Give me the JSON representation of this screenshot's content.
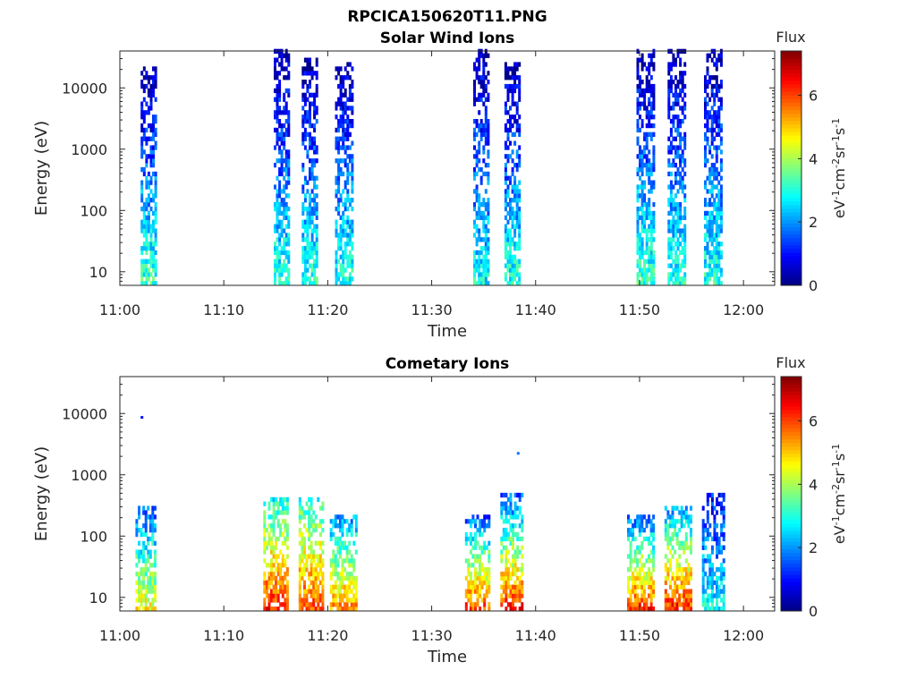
{
  "figure_title": "RPCICA150620T11.PNG",
  "colormap": [
    "#00007f",
    "#0000ff",
    "#007fff",
    "#00ffff",
    "#7fff7f",
    "#ffff00",
    "#ff7f00",
    "#ff0000",
    "#7f0000"
  ],
  "chart_data": [
    {
      "type": "heatmap",
      "title": "Solar Wind Ions",
      "xlabel": "Time",
      "ylabel": "Energy (eV)",
      "x_ticks": [
        "11:00",
        "11:10",
        "11:20",
        "11:30",
        "11:40",
        "11:50",
        "12:00"
      ],
      "y_ticks": [
        "10",
        "100",
        "1000",
        "10000"
      ],
      "yscale": "log",
      "xlim": [
        "11:00",
        "12:03"
      ],
      "ylim": [
        6,
        40000
      ],
      "colorbar": {
        "title": "Flux",
        "label": "eV-1cm-2sr-1s-1",
        "ticks": [
          "0",
          "2",
          "4",
          "6"
        ],
        "range": [
          0,
          7.4
        ]
      },
      "bursts": [
        {
          "start": "11:02",
          "end": "11:03.5",
          "emin": 6,
          "emax": 20000,
          "fluxLow": 3.2,
          "fluxHigh": 0.3
        },
        {
          "start": "11:14.8",
          "end": "11:16.2",
          "emin": 6,
          "emax": 40000,
          "fluxLow": 3.0,
          "fluxHigh": 0.3
        },
        {
          "start": "11:17.5",
          "end": "11:19",
          "emin": 6,
          "emax": 30000,
          "fluxLow": 3.0,
          "fluxHigh": 0.3
        },
        {
          "start": "11:20.7",
          "end": "11:22.4",
          "emin": 6,
          "emax": 25000,
          "fluxLow": 3.0,
          "fluxHigh": 0.3
        },
        {
          "start": "11:34",
          "end": "11:35.4",
          "emin": 6,
          "emax": 40000,
          "fluxLow": 2.8,
          "fluxHigh": 0.3
        },
        {
          "start": "11:37",
          "end": "11:38.5",
          "emin": 6,
          "emax": 25000,
          "fluxLow": 3.0,
          "fluxHigh": 0.3
        },
        {
          "start": "11:49.7",
          "end": "11:51.3",
          "emin": 6,
          "emax": 40000,
          "fluxLow": 3.2,
          "fluxHigh": 0.3
        },
        {
          "start": "11:52.7",
          "end": "11:54.3",
          "emin": 6,
          "emax": 40000,
          "fluxLow": 3.0,
          "fluxHigh": 0.3
        },
        {
          "start": "11:56.2",
          "end": "11:57.8",
          "emin": 6,
          "emax": 40000,
          "fluxLow": 3.0,
          "fluxHigh": 0.3
        }
      ]
    },
    {
      "type": "heatmap",
      "title": "Cometary Ions",
      "xlabel": "Time",
      "ylabel": "Energy (eV)",
      "x_ticks": [
        "11:00",
        "11:10",
        "11:20",
        "11:30",
        "11:40",
        "11:50",
        "12:00"
      ],
      "y_ticks": [
        "10",
        "100",
        "1000",
        "10000"
      ],
      "yscale": "log",
      "xlim": [
        "11:00",
        "12:03"
      ],
      "ylim": [
        6,
        40000
      ],
      "colorbar": {
        "title": "Flux",
        "label": "eV-1cm-2sr-1s-1",
        "ticks": [
          "0",
          "2",
          "4",
          "6"
        ],
        "range": [
          0,
          7.4
        ]
      },
      "bursts": [
        {
          "start": "11:01.5",
          "end": "11:03.4",
          "emin": 6,
          "emax": 300,
          "fluxLow": 4.6,
          "fluxHigh": 1.5
        },
        {
          "start": "11:13.8",
          "end": "11:16.2",
          "emin": 6,
          "emax": 400,
          "fluxLow": 6.2,
          "fluxHigh": 2.8
        },
        {
          "start": "11:17.2",
          "end": "11:19.6",
          "emin": 6,
          "emax": 400,
          "fluxLow": 6.0,
          "fluxHigh": 3.0
        },
        {
          "start": "11:20.2",
          "end": "11:22.8",
          "emin": 6,
          "emax": 200,
          "fluxLow": 5.4,
          "fluxHigh": 2.0
        },
        {
          "start": "11:33.2",
          "end": "11:35.6",
          "emin": 6,
          "emax": 200,
          "fluxLow": 6.0,
          "fluxHigh": 1.5
        },
        {
          "start": "11:36.6",
          "end": "11:38.8",
          "emin": 6,
          "emax": 450,
          "fluxLow": 6.2,
          "fluxHigh": 1.5
        },
        {
          "start": "11:48.8",
          "end": "11:51.4",
          "emin": 6,
          "emax": 200,
          "fluxLow": 6.2,
          "fluxHigh": 1.5
        },
        {
          "start": "11:52.4",
          "end": "11:55",
          "emin": 6,
          "emax": 300,
          "fluxLow": 6.2,
          "fluxHigh": 2.0
        },
        {
          "start": "11:56",
          "end": "11:58",
          "emin": 6,
          "emax": 450,
          "fluxLow": 2.8,
          "fluxHigh": 1.0
        }
      ],
      "isolated_points": [
        {
          "time": "11:02",
          "energy": 8500,
          "flux": 1.0
        },
        {
          "time": "11:38.2",
          "energy": 2200,
          "flux": 1.8
        }
      ]
    }
  ]
}
